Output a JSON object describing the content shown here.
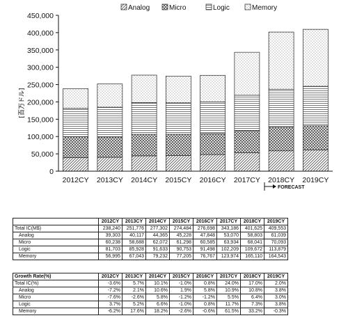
{
  "chart_data": {
    "type": "bar",
    "stacked": true,
    "categories": [
      "2012CY",
      "2013CY",
      "2014CY",
      "2015CY",
      "2016CY",
      "2017CY",
      "2018CY",
      "2019CY"
    ],
    "series": [
      {
        "name": "Analog",
        "values": [
          39303,
          40117,
          44365,
          45228,
          47848,
          53070,
          58803,
          61039
        ],
        "pattern": "diagonal hatch"
      },
      {
        "name": "Micro",
        "values": [
          60238,
          58688,
          62072,
          61298,
          60585,
          63934,
          68041,
          70093
        ],
        "pattern": "cross hatch"
      },
      {
        "name": "Logic",
        "values": [
          81703,
          85928,
          91633,
          90753,
          91498,
          102209,
          109672,
          113879
        ],
        "pattern": "horizontal lines"
      },
      {
        "name": "Memory",
        "values": [
          56995,
          67043,
          79232,
          77205,
          76767,
          123974,
          165110,
          164543
        ],
        "pattern": "dots"
      }
    ],
    "ylabel": "[百万ドル]",
    "ylim": [
      0,
      450000
    ],
    "yticks": [
      "0",
      "50,000",
      "100,000",
      "150,000",
      "200,000",
      "250,000",
      "300,000",
      "350,000",
      "400,000",
      "450,000"
    ],
    "legend_position": "top",
    "grid": false,
    "forecast_label": "FORECAST",
    "forecast_from": "2018CY"
  },
  "table1": {
    "header": [
      "",
      "2012CY",
      "2013CY",
      "2014CY",
      "2015CY",
      "2016CY",
      "2017CY",
      "2018CY",
      "2019CY"
    ],
    "rows": [
      {
        "label": "Total IC(M$)",
        "sub": false,
        "values": [
          "238,240",
          "251,776",
          "277,302",
          "274,484",
          "276,698",
          "343,186",
          "401,625",
          "409,553"
        ]
      },
      {
        "label": "Analog",
        "sub": true,
        "values": [
          "39,303",
          "40,117",
          "44,365",
          "45,228",
          "47,848",
          "53,070",
          "58,803",
          "61,039"
        ]
      },
      {
        "label": "Micro",
        "sub": true,
        "values": [
          "60,238",
          "58,688",
          "62,072",
          "61,298",
          "60,585",
          "63,934",
          "68,041",
          "70,093"
        ]
      },
      {
        "label": "Logic",
        "sub": true,
        "values": [
          "81,703",
          "85,928",
          "91,633",
          "90,753",
          "91,498",
          "102,209",
          "109,672",
          "113,879"
        ]
      },
      {
        "label": "Memory",
        "sub": true,
        "values": [
          "56,995",
          "67,043",
          "79,232",
          "77,205",
          "76,767",
          "123,974",
          "165,110",
          "164,543"
        ]
      }
    ]
  },
  "table2": {
    "header": [
      "Growth Rate(%)",
      "2012CY",
      "2013CY",
      "2014CY",
      "2015CY",
      "2016CY",
      "2017CY",
      "2018CY",
      "2019CY"
    ],
    "rows": [
      {
        "label": "Total IC(%)",
        "sub": false,
        "values": [
          "-3.6%",
          "5.7%",
          "10.1%",
          "-1.0%",
          "0.8%",
          "24.0%",
          "17.0%",
          "2.0%"
        ]
      },
      {
        "label": "Analog",
        "sub": true,
        "values": [
          "-7.2%",
          "2.1%",
          "10.6%",
          "1.9%",
          "5.8%",
          "10.9%",
          "10.8%",
          "3.8%"
        ]
      },
      {
        "label": "Micro",
        "sub": true,
        "values": [
          "-7.6%",
          "-2.6%",
          "5.8%",
          "-1.2%",
          "-1.2%",
          "5.5%",
          "6.4%",
          "3.0%"
        ]
      },
      {
        "label": "Logic",
        "sub": true,
        "values": [
          "3.7%",
          "5.2%",
          "6.6%",
          "-1.0%",
          "0.8%",
          "11.7%",
          "7.3%",
          "3.8%"
        ]
      },
      {
        "label": "Memory",
        "sub": true,
        "values": [
          "-6.2%",
          "17.6%",
          "18.2%",
          "-2.6%",
          "-0.6%",
          "61.5%",
          "33.2%",
          "-0.3%"
        ]
      }
    ]
  }
}
